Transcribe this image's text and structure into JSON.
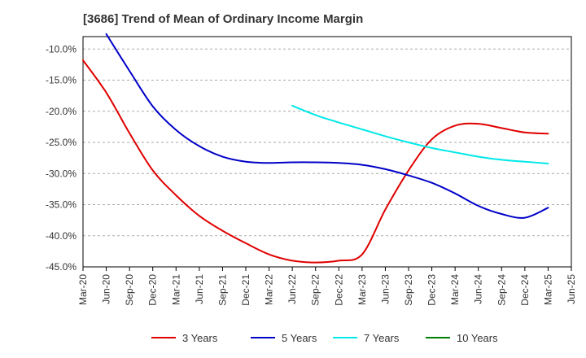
{
  "chart_data": {
    "type": "line",
    "title": "[3686]  Trend of Mean of Ordinary Income Margin",
    "xlabel": "",
    "ylabel": "",
    "x": [
      "Mar-20",
      "Jun-20",
      "Sep-20",
      "Dec-20",
      "Mar-21",
      "Jun-21",
      "Sep-21",
      "Dec-21",
      "Mar-22",
      "Jun-22",
      "Sep-22",
      "Dec-22",
      "Mar-23",
      "Jun-23",
      "Sep-23",
      "Dec-23",
      "Mar-24",
      "Jun-24",
      "Sep-24",
      "Dec-24",
      "Mar-25",
      "Jun-25"
    ],
    "yticks": [
      -10.0,
      -15.0,
      -20.0,
      -25.0,
      -30.0,
      -35.0,
      -40.0,
      -45.0
    ],
    "ytick_labels": [
      "-10.0%",
      "-15.0%",
      "-20.0%",
      "-25.0%",
      "-30.0%",
      "-35.0%",
      "-40.0%",
      "-45.0%"
    ],
    "ylim": [
      -45.0,
      -8.0
    ],
    "grid": "horizontal-dashed",
    "legend_position": "bottom",
    "series": [
      {
        "name": "3 Years",
        "color": "#e00000",
        "values": [
          -11.8,
          -17.0,
          -23.5,
          -29.5,
          -33.5,
          -36.8,
          -39.2,
          -41.2,
          -43.0,
          -44.0,
          -44.3,
          -44.0,
          -43.0,
          -35.8,
          -29.5,
          -24.5,
          -22.3,
          -22.0,
          -22.7,
          -23.4,
          -23.6,
          null
        ]
      },
      {
        "name": "5 Years",
        "color": "#0000c8",
        "values": [
          null,
          -7.6,
          -13.5,
          -19.2,
          -23.0,
          -25.6,
          -27.3,
          -28.1,
          -28.3,
          -28.2,
          -28.2,
          -28.3,
          -28.6,
          -29.3,
          -30.3,
          -31.5,
          -33.2,
          -35.2,
          -36.5,
          -37.1,
          -35.5,
          null
        ]
      },
      {
        "name": "7 Years",
        "color": "#00e8e8",
        "values": [
          null,
          null,
          null,
          null,
          null,
          null,
          null,
          null,
          null,
          -19.1,
          -20.6,
          -21.8,
          -22.9,
          -24.0,
          -25.0,
          -25.9,
          -26.6,
          -27.3,
          -27.8,
          -28.1,
          -28.4,
          null
        ]
      },
      {
        "name": "10 Years",
        "color": "#008000",
        "values": [
          null,
          null,
          null,
          null,
          null,
          null,
          null,
          null,
          null,
          null,
          null,
          null,
          null,
          null,
          null,
          null,
          null,
          null,
          null,
          null,
          null,
          null
        ]
      }
    ]
  }
}
